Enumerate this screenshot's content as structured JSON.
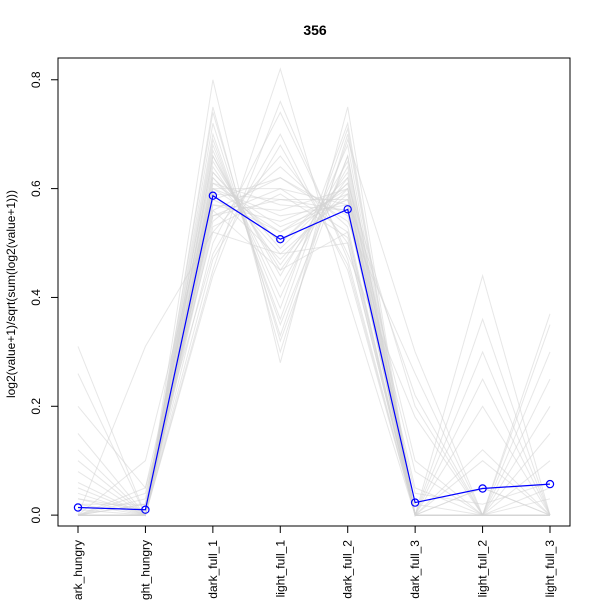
{
  "chart_data": {
    "type": "line",
    "title": "356",
    "xlabel": "",
    "ylabel": "log2(value+1)/sqrt(sum(log2(value+1)))",
    "categories": [
      "dark_hungry",
      "light_hungry",
      "dark_full_1",
      "light_full_1",
      "dark_full_2",
      "dark_full_3",
      "light_full_2",
      "light_full_3"
    ],
    "category_labels_visible": [
      "ark_hungry",
      "ght_hungry",
      "dark_full_1",
      "light_full_1",
      "dark_full_2",
      "dark_full_3",
      "light_full_2",
      "light_full_3"
    ],
    "ylim": [
      -0.02,
      0.84
    ],
    "yticks": [
      0.0,
      0.2,
      0.4,
      0.6,
      0.8
    ],
    "ytick_labels": [
      "0.0",
      "0.2",
      "0.4",
      "0.6",
      "0.8"
    ],
    "grid": false,
    "legend": "none",
    "highlight_series": {
      "values": [
        0.014,
        0.01,
        0.587,
        0.507,
        0.562,
        0.023,
        0.049,
        0.057
      ],
      "color": "#0000ff",
      "marker": "open-circle"
    },
    "background_series": {
      "color": "#d3d3d3",
      "values": [
        [
          0.0,
          0.0,
          0.6,
          0.52,
          0.58,
          0.0,
          0.0,
          0.0
        ],
        [
          0.01,
          0.0,
          0.65,
          0.45,
          0.62,
          0.02,
          0.0,
          0.03
        ],
        [
          0.0,
          0.02,
          0.55,
          0.6,
          0.52,
          0.0,
          0.05,
          0.0
        ],
        [
          0.03,
          0.01,
          0.7,
          0.35,
          0.66,
          0.0,
          0.0,
          0.0
        ],
        [
          0.0,
          0.0,
          0.58,
          0.62,
          0.55,
          0.04,
          0.02,
          0.06
        ],
        [
          0.05,
          0.0,
          0.62,
          0.48,
          0.59,
          0.0,
          0.0,
          0.0
        ],
        [
          0.0,
          0.04,
          0.52,
          0.66,
          0.5,
          0.0,
          0.0,
          0.1
        ],
        [
          0.12,
          0.0,
          0.66,
          0.42,
          0.64,
          0.0,
          0.0,
          0.0
        ],
        [
          0.0,
          0.0,
          0.75,
          0.3,
          0.7,
          0.0,
          0.0,
          0.0
        ],
        [
          0.02,
          0.0,
          0.57,
          0.56,
          0.6,
          0.1,
          0.0,
          0.0
        ],
        [
          0.0,
          0.05,
          0.48,
          0.7,
          0.45,
          0.0,
          0.12,
          0.0
        ],
        [
          0.0,
          0.0,
          0.6,
          0.55,
          0.57,
          0.0,
          0.25,
          0.0
        ],
        [
          0.08,
          0.0,
          0.63,
          0.5,
          0.61,
          0.0,
          0.0,
          0.3
        ],
        [
          0.0,
          0.0,
          0.59,
          0.58,
          0.58,
          0.22,
          0.0,
          0.0
        ],
        [
          0.31,
          0.0,
          0.56,
          0.45,
          0.52,
          0.0,
          0.0,
          0.0
        ],
        [
          0.0,
          0.31,
          0.52,
          0.48,
          0.5,
          0.0,
          0.0,
          0.0
        ],
        [
          0.0,
          0.0,
          0.8,
          0.28,
          0.75,
          0.0,
          0.0,
          0.0
        ],
        [
          0.0,
          0.0,
          0.45,
          0.82,
          0.4,
          0.0,
          0.0,
          0.0
        ],
        [
          0.02,
          0.02,
          0.67,
          0.4,
          0.68,
          0.0,
          0.36,
          0.0
        ],
        [
          0.0,
          0.0,
          0.61,
          0.57,
          0.56,
          0.0,
          0.0,
          0.35
        ],
        [
          0.26,
          0.0,
          0.58,
          0.52,
          0.6,
          0.0,
          0.0,
          0.0
        ],
        [
          0.0,
          0.0,
          0.72,
          0.33,
          0.69,
          0.3,
          0.0,
          0.0
        ],
        [
          0.04,
          0.0,
          0.54,
          0.64,
          0.53,
          0.0,
          0.05,
          0.0
        ],
        [
          0.0,
          0.03,
          0.64,
          0.46,
          0.63,
          0.0,
          0.0,
          0.25
        ],
        [
          0.0,
          0.0,
          0.5,
          0.74,
          0.48,
          0.18,
          0.0,
          0.0
        ],
        [
          0.15,
          0.0,
          0.57,
          0.54,
          0.59,
          0.0,
          0.2,
          0.0
        ],
        [
          0.0,
          0.0,
          0.68,
          0.38,
          0.72,
          0.0,
          0.0,
          0.05
        ],
        [
          0.0,
          0.1,
          0.6,
          0.6,
          0.57,
          0.05,
          0.0,
          0.0
        ],
        [
          0.0,
          0.0,
          0.47,
          0.68,
          0.46,
          0.0,
          0.44,
          0.0
        ],
        [
          0.06,
          0.0,
          0.62,
          0.5,
          0.62,
          0.0,
          0.0,
          0.0
        ],
        [
          0.0,
          0.0,
          0.56,
          0.62,
          0.54,
          0.26,
          0.0,
          0.37
        ],
        [
          0.0,
          0.0,
          0.74,
          0.32,
          0.66,
          0.0,
          0.0,
          0.0
        ],
        [
          0.2,
          0.05,
          0.59,
          0.47,
          0.6,
          0.0,
          0.0,
          0.0
        ],
        [
          0.0,
          0.0,
          0.53,
          0.59,
          0.51,
          0.0,
          0.3,
          0.0
        ],
        [
          0.0,
          0.0,
          0.66,
          0.44,
          0.65,
          0.0,
          0.0,
          0.2
        ],
        [
          0.03,
          0.0,
          0.61,
          0.53,
          0.58,
          0.08,
          0.0,
          0.0
        ],
        [
          0.0,
          0.0,
          0.44,
          0.76,
          0.47,
          0.0,
          0.0,
          0.0
        ],
        [
          0.0,
          0.0,
          0.69,
          0.36,
          0.71,
          0.0,
          0.1,
          0.0
        ],
        [
          0.1,
          0.0,
          0.55,
          0.58,
          0.56,
          0.0,
          0.0,
          0.15
        ],
        [
          0.0,
          0.02,
          0.63,
          0.49,
          0.61,
          0.2,
          0.0,
          0.0
        ]
      ]
    }
  }
}
